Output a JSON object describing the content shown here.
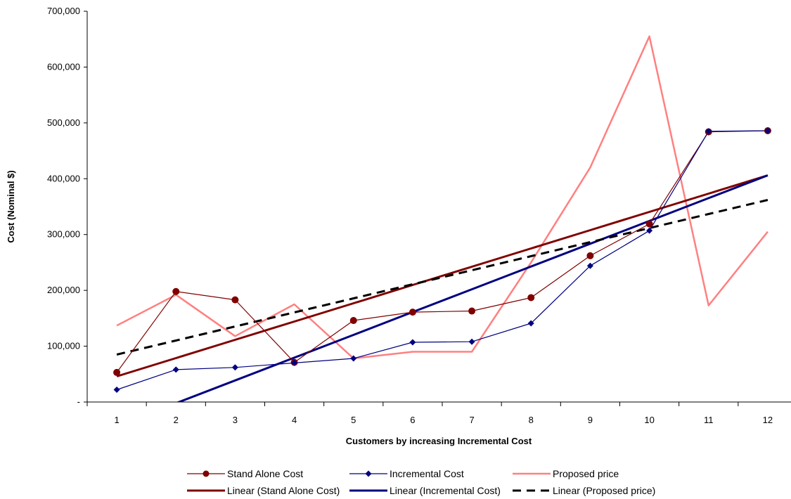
{
  "chart_data": {
    "type": "line",
    "title": "",
    "xlabel": "Customers by increasing Incremental Cost",
    "ylabel": "Cost (Nominal $)",
    "categories": [
      "1",
      "2",
      "3",
      "4",
      "5",
      "6",
      "7",
      "8",
      "9",
      "10",
      "11",
      "12"
    ],
    "ylim": [
      0,
      700000
    ],
    "yticks": [
      0,
      100000,
      200000,
      300000,
      400000,
      500000,
      600000,
      700000
    ],
    "ytick_labels": [
      "-",
      "100,000",
      "200,000",
      "300,000",
      "400,000",
      "500,000",
      "600,000",
      "700,000"
    ],
    "grid": false,
    "legend_position": "bottom",
    "series": [
      {
        "name": "Stand Alone Cost",
        "color": "#800000",
        "marker": "circle",
        "width": 1.2,
        "dash": "",
        "values": [
          53000,
          198000,
          183000,
          71000,
          146000,
          161000,
          163000,
          187000,
          262000,
          319000,
          484000,
          486000
        ]
      },
      {
        "name": "Incremental Cost",
        "color": "#000080",
        "marker": "diamond",
        "width": 1.2,
        "dash": "",
        "values": [
          22000,
          58000,
          62000,
          70000,
          78000,
          107000,
          108000,
          141000,
          244000,
          307000,
          485000,
          486000
        ]
      },
      {
        "name": "Proposed price",
        "color": "#ff8080",
        "marker": "none",
        "width": 2.5,
        "dash": "",
        "values": [
          137000,
          192000,
          118000,
          175000,
          78000,
          90000,
          90000,
          250000,
          420000,
          655000,
          173000,
          305000
        ]
      },
      {
        "name": "Linear (Stand Alone Cost)",
        "color": "#800000",
        "marker": "none",
        "width": 3,
        "dash": "",
        "trend": true,
        "values": [
          46000,
          78727,
          111455,
          144182,
          176909,
          209636,
          242364,
          275091,
          307818,
          340545,
          373273,
          406000
        ]
      },
      {
        "name": "Linear (Incremental Cost)",
        "color": "#000080",
        "marker": "none",
        "width": 3,
        "dash": "",
        "trend": true,
        "values": [
          -43000,
          -2182,
          38636,
          79455,
          120273,
          161091,
          201909,
          242727,
          283545,
          324364,
          365182,
          406000
        ]
      },
      {
        "name": "Linear (Proposed price)",
        "color": "#000000",
        "marker": "none",
        "width": 3,
        "dash": "12,8",
        "trend": true,
        "values": [
          85000,
          110182,
          135364,
          160545,
          185727,
          210909,
          236091,
          261273,
          286455,
          311636,
          336818,
          362000
        ]
      }
    ]
  }
}
